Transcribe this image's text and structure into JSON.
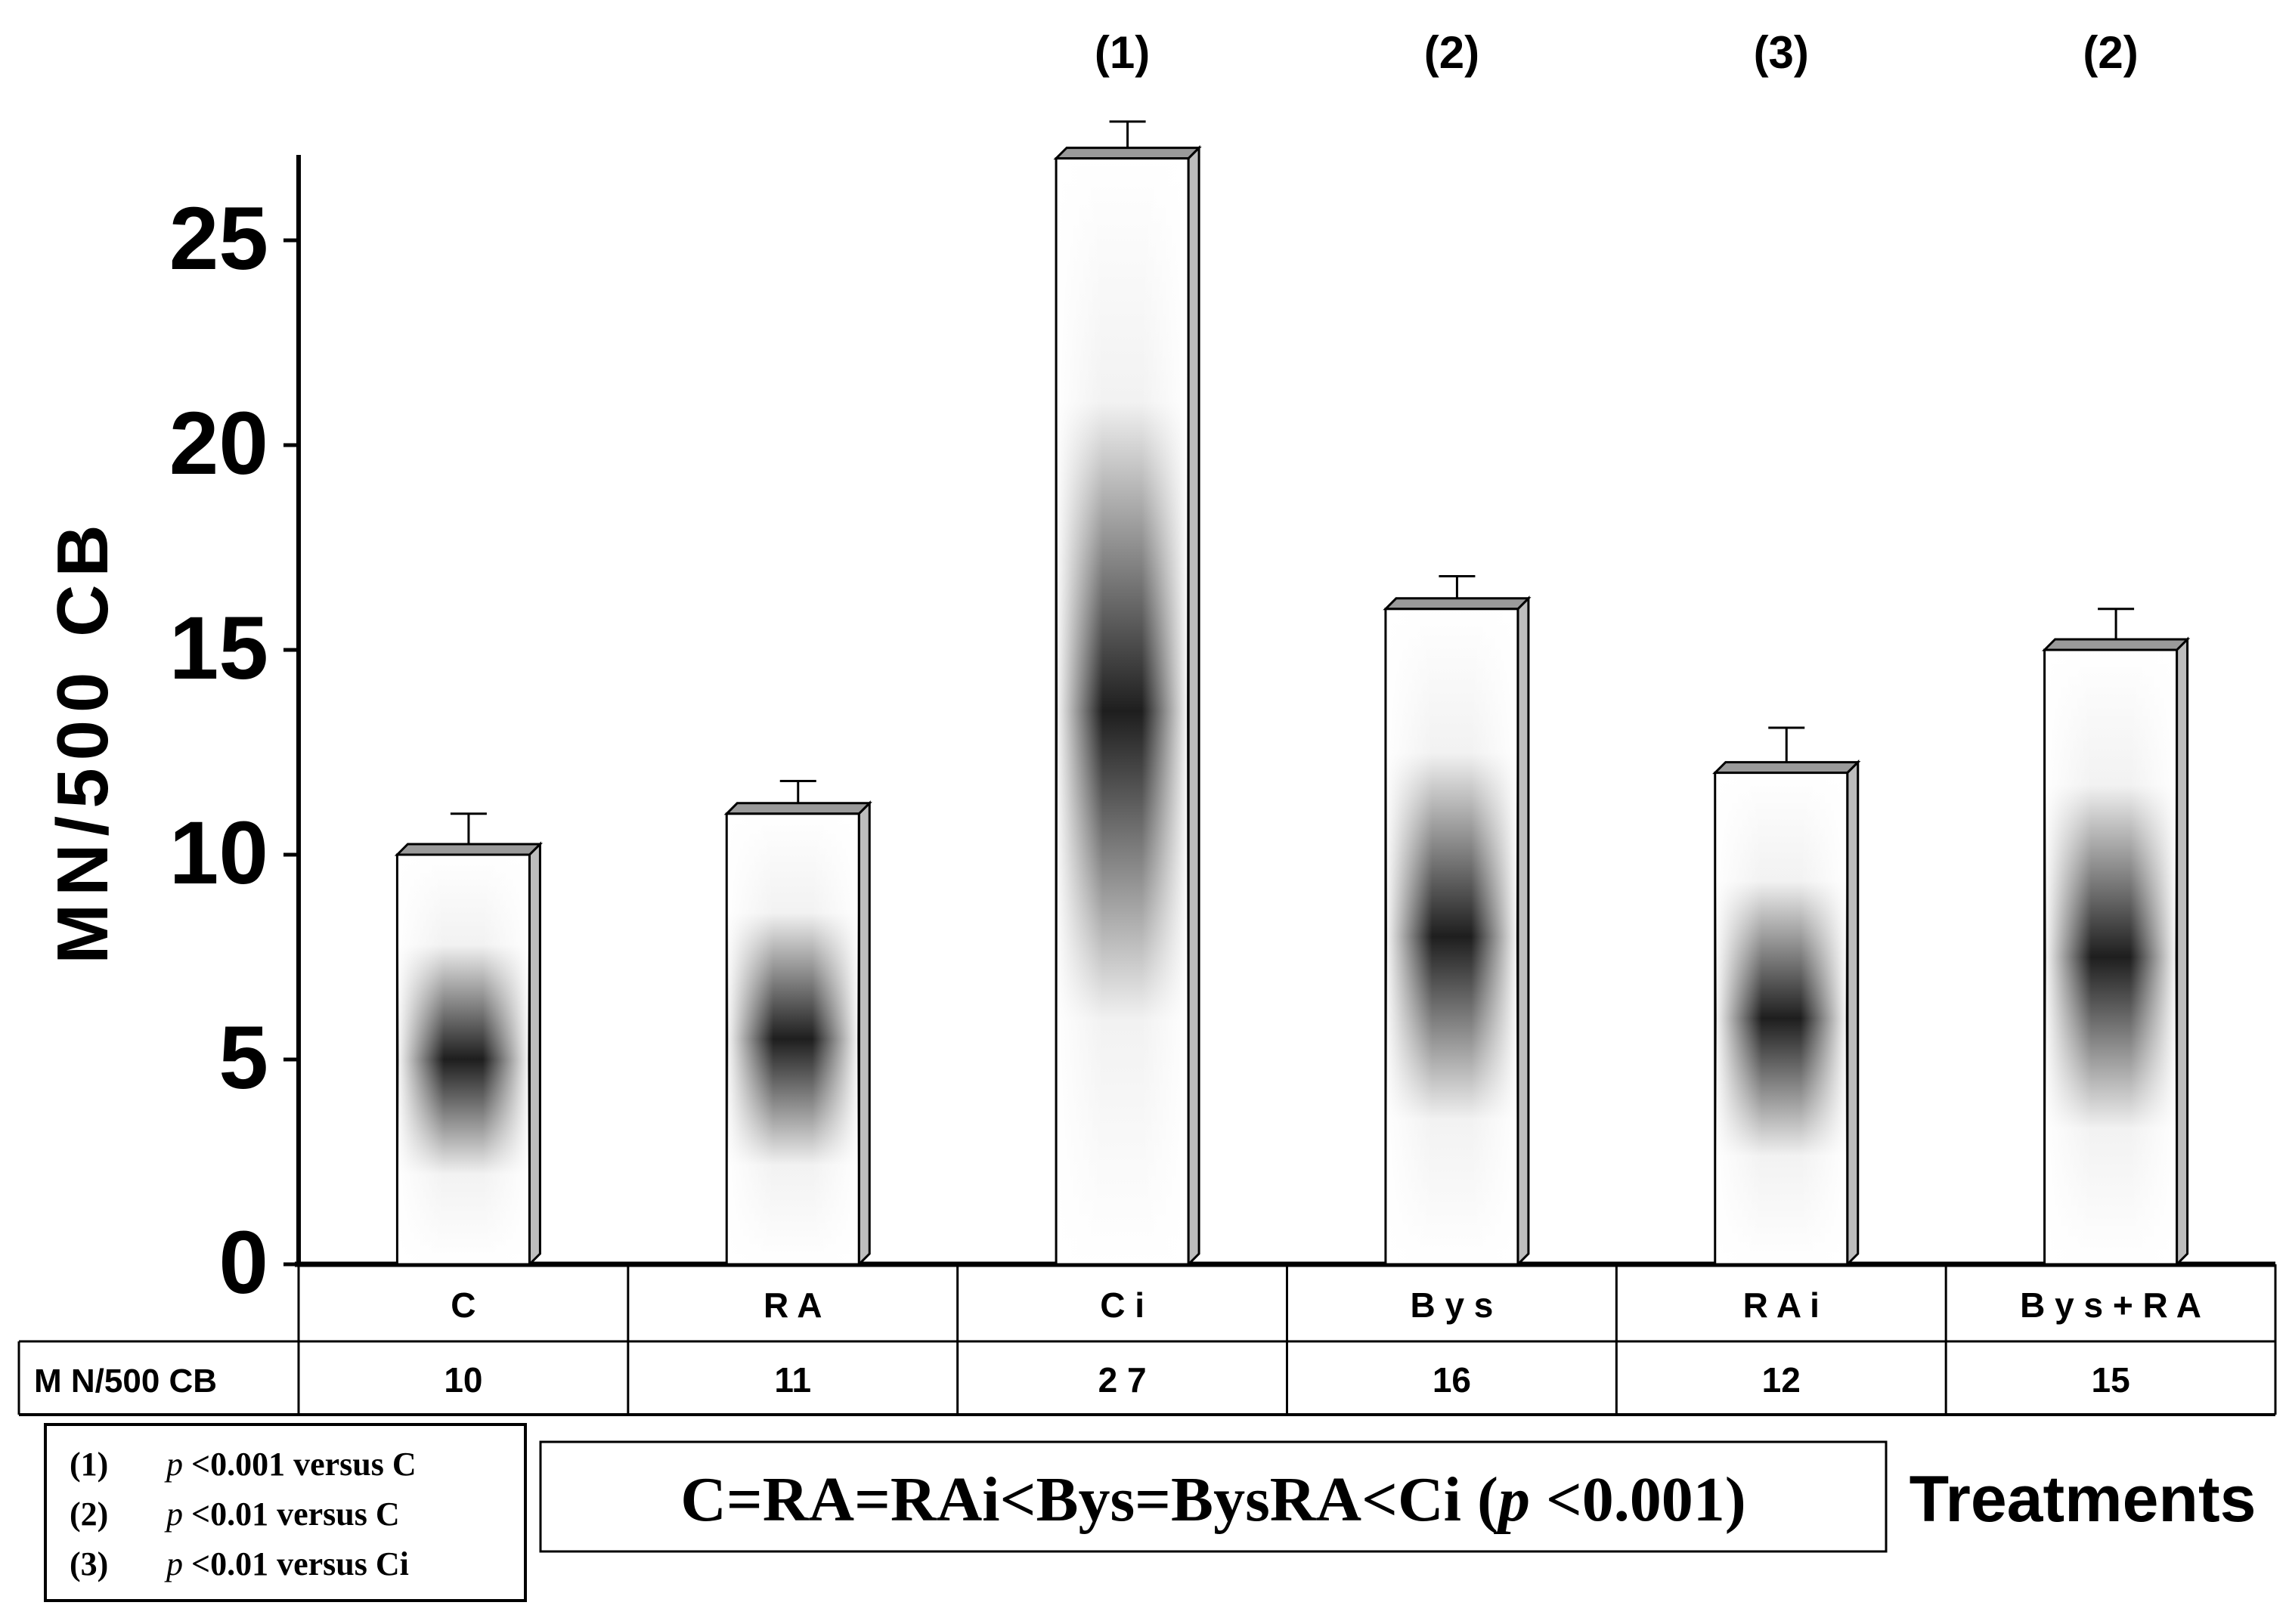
{
  "chart_data": {
    "type": "bar",
    "categories": [
      "C",
      "RA",
      "Ci",
      "Bys",
      "RA i",
      "Bys+RA"
    ],
    "values": [
      10,
      11,
      27,
      16,
      12,
      15
    ],
    "error_upper": [
      11.0,
      11.8,
      27.9,
      16.8,
      13.1,
      16.0
    ],
    "significance_marks": [
      "",
      "",
      "(1)",
      "(2)",
      "(3)",
      "(2)"
    ],
    "ylabel": "MN/500 CB",
    "xlabel": "Treatments",
    "ylim": [
      0,
      27
    ],
    "yticks": [
      0,
      5,
      10,
      15,
      20,
      25
    ],
    "grid": false,
    "table": {
      "row_label": "M N/500  CB",
      "category_labels": [
        "C",
        "R A",
        "C i",
        "B y s",
        "R A  i",
        "B y s + R A"
      ],
      "value_labels": [
        "10",
        "11",
        "2 7",
        "16",
        "12",
        "15"
      ]
    },
    "legend_box": {
      "items": [
        {
          "mark": "(1)",
          "p": "p",
          "text": " <0.001 versus C"
        },
        {
          "mark": "(2)",
          "p": "p",
          "text": " <0.01   versus C"
        },
        {
          "mark": "(3)",
          "p": "p",
          "text": " <0.01  versus Ci"
        }
      ]
    },
    "summary_box": {
      "prefix": "C=RA=RAi<Bys=BysRA<Ci (",
      "p": "p",
      "suffix": " <0.001)"
    },
    "colors": {
      "bar_light": "#ffffff",
      "bar_dark": "#1a1a1a",
      "axis": "#000000"
    }
  }
}
